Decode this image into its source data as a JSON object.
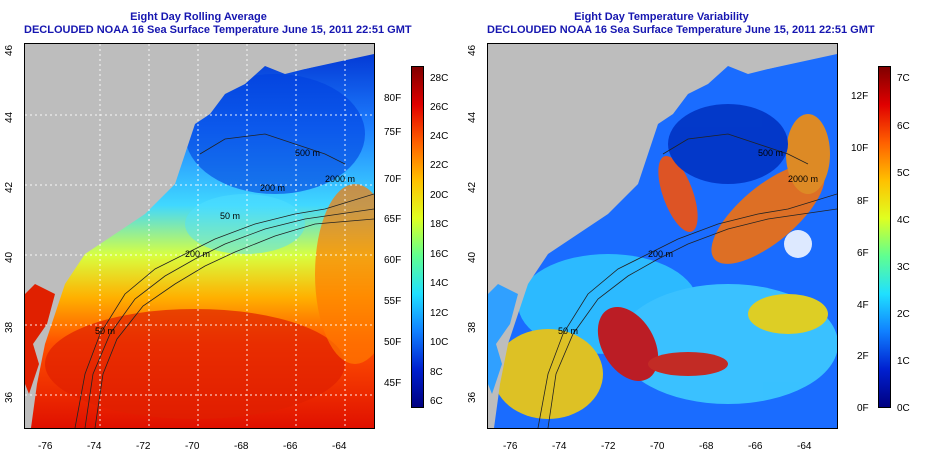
{
  "left_panel": {
    "title": "Eight Day Rolling Average",
    "subtitle": "DECLOUDED NOAA 16 Sea Surface Temperature June 15, 2011 22:51 GMT",
    "lon_ticks": [
      "-76",
      "-74",
      "-72",
      "-70",
      "-68",
      "-66",
      "-64"
    ],
    "lat_ticks": [
      "46",
      "44",
      "42",
      "40",
      "38",
      "36"
    ],
    "contours": [
      "50 m",
      "200 m",
      "200 m",
      "2000 m",
      "500 m",
      "50 m"
    ],
    "colorbar_c": [
      "28C",
      "26C",
      "24C",
      "22C",
      "20C",
      "18C",
      "16C",
      "14C",
      "12C",
      "10C",
      "8C",
      "6C"
    ],
    "colorbar_f": [
      "80F",
      "75F",
      "70F",
      "65F",
      "60F",
      "55F",
      "50F",
      "45F"
    ]
  },
  "right_panel": {
    "title": "Eight Day Temperature Variability",
    "subtitle": "DECLOUDED NOAA 16 Sea Surface Temperature June 15, 2011 22:51 GMT",
    "lon_ticks": [
      "-76",
      "-74",
      "-72",
      "-70",
      "-68",
      "-66",
      "-64"
    ],
    "lat_ticks": [
      "46",
      "44",
      "42",
      "40",
      "38",
      "36"
    ],
    "contours": [
      "50 m",
      "200 m",
      "2000 m",
      "500 m"
    ],
    "colorbar_c": [
      "7C",
      "6C",
      "5C",
      "4C",
      "3C",
      "2C",
      "1C",
      "0C"
    ],
    "colorbar_f": [
      "12F",
      "10F",
      "8F",
      "6F",
      "4F",
      "2F",
      "0F"
    ]
  },
  "colors": {
    "land": "#bdbdbd",
    "title": "#1616b0",
    "sst_scale": [
      "#800000",
      "#e00000",
      "#ff6000",
      "#ffc000",
      "#e0ff20",
      "#60ff90",
      "#20e0ff",
      "#1080ff",
      "#0020d0",
      "#000080"
    ],
    "var_scale": [
      "#800000",
      "#e00000",
      "#ff6000",
      "#ffc000",
      "#e0ff20",
      "#60ff90",
      "#20e0ff",
      "#1080ff",
      "#0020d0",
      "#000080"
    ]
  }
}
